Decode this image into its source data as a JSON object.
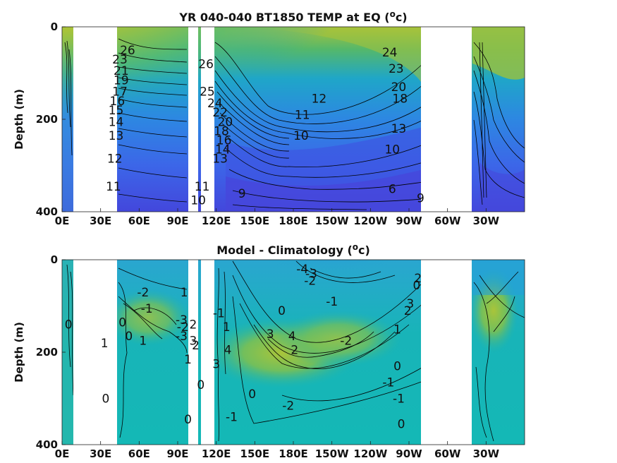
{
  "chart_data": [
    {
      "type": "heatmap",
      "subtype": "filled-contour",
      "title": "YR 040-040 BT1850 TEMP at EQ (",
      "title_sup": "o",
      "title_unit": "c)",
      "xlabel": "",
      "ylabel": "Depth (m)",
      "xticks": [
        "0E",
        "30E",
        "60E",
        "90E",
        "120E",
        "150E",
        "180E",
        "150W",
        "120W",
        "90W",
        "60W",
        "30W"
      ],
      "xlim_deg_east": [
        0,
        360
      ],
      "yticks": [
        "0",
        "200",
        "400"
      ],
      "ylim_m": [
        400,
        0
      ],
      "colormap": "parula",
      "land_gaps_deg_east": [
        [
          7,
          34
        ],
        [
          43,
          49
        ],
        [
          53,
          55
        ],
        [
          221,
          253
        ],
        [
          255,
          256
        ]
      ],
      "contour_labels": [
        {
          "text": "26",
          "lon": 51,
          "depth": 50
        },
        {
          "text": "23",
          "lon": 45,
          "depth": 70
        },
        {
          "text": "21",
          "lon": 46,
          "depth": 95
        },
        {
          "text": "19",
          "lon": 46,
          "depth": 115
        },
        {
          "text": "17",
          "lon": 45,
          "depth": 140
        },
        {
          "text": "16",
          "lon": 43,
          "depth": 160
        },
        {
          "text": "15",
          "lon": 42,
          "depth": 180
        },
        {
          "text": "14",
          "lon": 42,
          "depth": 205
        },
        {
          "text": "13",
          "lon": 42,
          "depth": 235
        },
        {
          "text": "12",
          "lon": 41,
          "depth": 285
        },
        {
          "text": "11",
          "lon": 40,
          "depth": 345
        },
        {
          "text": "26",
          "lon": 112,
          "depth": 80
        },
        {
          "text": "25",
          "lon": 113,
          "depth": 140
        },
        {
          "text": "24",
          "lon": 119,
          "depth": 165
        },
        {
          "text": "22",
          "lon": 123,
          "depth": 185
        },
        {
          "text": "20",
          "lon": 127,
          "depth": 205
        },
        {
          "text": "18",
          "lon": 124,
          "depth": 225
        },
        {
          "text": "16",
          "lon": 126,
          "depth": 245
        },
        {
          "text": "14",
          "lon": 125,
          "depth": 265
        },
        {
          "text": "13",
          "lon": 123,
          "depth": 285
        },
        {
          "text": "12",
          "lon": 200,
          "depth": 155
        },
        {
          "text": "11",
          "lon": 187,
          "depth": 190
        },
        {
          "text": "10",
          "lon": 186,
          "depth": 235
        },
        {
          "text": "11",
          "lon": 109,
          "depth": 345
        },
        {
          "text": "10",
          "lon": 106,
          "depth": 375
        },
        {
          "text": "9",
          "lon": 140,
          "depth": 360
        },
        {
          "text": "24",
          "lon": 255,
          "depth": 55
        },
        {
          "text": "23",
          "lon": 260,
          "depth": 90
        },
        {
          "text": "20",
          "lon": 262,
          "depth": 130
        },
        {
          "text": "18",
          "lon": 263,
          "depth": 155
        },
        {
          "text": "13",
          "lon": 262,
          "depth": 220
        },
        {
          "text": "10",
          "lon": 257,
          "depth": 265
        },
        {
          "text": "6",
          "lon": 257,
          "depth": 350
        },
        {
          "text": "9",
          "lon": 279,
          "depth": 370
        }
      ]
    },
    {
      "type": "heatmap",
      "subtype": "filled-contour",
      "title": "Model - Climatology (",
      "title_sup": "o",
      "title_unit": "c)",
      "xlabel": "",
      "ylabel": "Depth (m)",
      "xticks": [
        "0E",
        "30E",
        "60E",
        "90E",
        "120E",
        "150E",
        "180E",
        "150W",
        "120W",
        "90W",
        "60W",
        "30W"
      ],
      "xlim_deg_east": [
        0,
        360
      ],
      "yticks": [
        "0",
        "200",
        "400"
      ],
      "ylim_m": [
        400,
        0
      ],
      "colormap": "parula",
      "land_gaps_deg_east": [
        [
          7,
          34
        ],
        [
          43,
          49
        ],
        [
          53,
          55
        ],
        [
          221,
          253
        ],
        [
          255,
          256
        ]
      ],
      "contour_labels": [
        {
          "text": "0",
          "lon": 5,
          "depth": 140
        },
        {
          "text": "1",
          "lon": 33,
          "depth": 180
        },
        {
          "text": "0",
          "lon": 34,
          "depth": 300
        },
        {
          "text": "-2",
          "lon": 63,
          "depth": 70
        },
        {
          "text": "-1",
          "lon": 66,
          "depth": 105
        },
        {
          "text": "0",
          "lon": 47,
          "depth": 135
        },
        {
          "text": "0",
          "lon": 52,
          "depth": 165
        },
        {
          "text": "1",
          "lon": 63,
          "depth": 175
        },
        {
          "text": "1",
          "lon": 95,
          "depth": 70
        },
        {
          "text": "-3",
          "lon": 93,
          "depth": 130
        },
        {
          "text": "-2",
          "lon": 94,
          "depth": 145
        },
        {
          "text": "-3",
          "lon": 93,
          "depth": 165
        },
        {
          "text": "2",
          "lon": 102,
          "depth": 140
        },
        {
          "text": "-1",
          "lon": 122,
          "depth": 115
        },
        {
          "text": "1",
          "lon": 128,
          "depth": 145
        },
        {
          "text": "3",
          "lon": 102,
          "depth": 175
        },
        {
          "text": "2",
          "lon": 104,
          "depth": 185
        },
        {
          "text": "1",
          "lon": 98,
          "depth": 215
        },
        {
          "text": "4",
          "lon": 129,
          "depth": 195
        },
        {
          "text": "3",
          "lon": 120,
          "depth": 225
        },
        {
          "text": "0",
          "lon": 108,
          "depth": 270
        },
        {
          "text": "0",
          "lon": 98,
          "depth": 345
        },
        {
          "text": "3",
          "lon": 162,
          "depth": 160
        },
        {
          "text": "0",
          "lon": 171,
          "depth": 110
        },
        {
          "text": "4",
          "lon": 179,
          "depth": 165
        },
        {
          "text": "2",
          "lon": 181,
          "depth": 195
        },
        {
          "text": "0",
          "lon": 148,
          "depth": 290
        },
        {
          "text": "-2",
          "lon": 176,
          "depth": 315
        },
        {
          "text": "-1",
          "lon": 132,
          "depth": 340
        },
        {
          "text": "-4",
          "lon": 187,
          "depth": 20
        },
        {
          "text": "-3",
          "lon": 194,
          "depth": 30
        },
        {
          "text": "-2",
          "lon": 193,
          "depth": 45
        },
        {
          "text": "-1",
          "lon": 210,
          "depth": 90
        },
        {
          "text": "-2",
          "lon": 221,
          "depth": 175
        },
        {
          "text": "2",
          "lon": 277,
          "depth": 40
        },
        {
          "text": "0",
          "lon": 276,
          "depth": 55
        },
        {
          "text": "3",
          "lon": 271,
          "depth": 95
        },
        {
          "text": "2",
          "lon": 269,
          "depth": 110
        },
        {
          "text": "1",
          "lon": 261,
          "depth": 150
        },
        {
          "text": "0",
          "lon": 261,
          "depth": 230
        },
        {
          "text": "-1",
          "lon": 254,
          "depth": 265
        },
        {
          "text": "-1",
          "lon": 262,
          "depth": 300
        },
        {
          "text": "0",
          "lon": 264,
          "depth": 355
        }
      ]
    }
  ]
}
